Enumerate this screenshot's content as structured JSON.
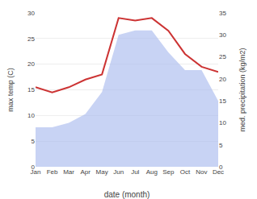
{
  "chart_data": {
    "type": "line",
    "categories": [
      "Jan",
      "Feb",
      "Mar",
      "Apr",
      "May",
      "Jun",
      "Jul",
      "Aug",
      "Sep",
      "Oct",
      "Nov",
      "Dec"
    ],
    "series": [
      {
        "type": "area",
        "axis": "y2",
        "color": "#aabbee",
        "values": [
          9.0,
          9.0,
          10.0,
          12.0,
          17.0,
          30.0,
          31.0,
          31.0,
          26.0,
          22.0,
          22.0,
          15.0
        ]
      },
      {
        "type": "line",
        "color": "#cc3333",
        "values": [
          15.5,
          14.5,
          15.5,
          17.0,
          18.0,
          29.0,
          28.5,
          29.0,
          26.5,
          22.0,
          19.5,
          18.5
        ]
      }
    ],
    "xlabel": "date (month)",
    "ylabel": "max temp (C)",
    "y2label": "med. precipitation (kg/m2)",
    "ylim": [
      0,
      30
    ],
    "yticks": [
      0,
      5,
      10,
      15,
      20,
      25,
      30
    ],
    "y2lim": [
      0,
      35
    ],
    "y2ticks": [
      0,
      5,
      10,
      15,
      20,
      25,
      30,
      35
    ],
    "grid": true
  }
}
